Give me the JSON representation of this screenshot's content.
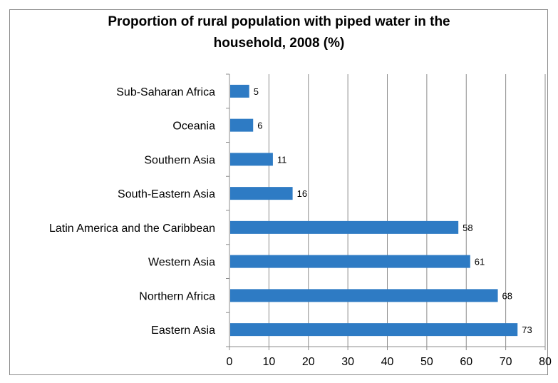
{
  "chart_data": {
    "type": "bar",
    "orientation": "horizontal",
    "title_lines": [
      "Proportion of rural population with piped water in the",
      "household, 2008 (%)"
    ],
    "categories": [
      "Sub-Saharan Africa",
      "Oceania",
      "Southern Asia",
      "South-Eastern Asia",
      "Latin America and the Caribbean",
      "Western Asia",
      "Northern Africa",
      "Eastern Asia"
    ],
    "values": [
      5,
      6,
      11,
      16,
      58,
      61,
      68,
      73
    ],
    "xlim": [
      0,
      80
    ],
    "xticks": [
      "0",
      "10",
      "20",
      "30",
      "40",
      "50",
      "60",
      "70",
      "80"
    ],
    "grid": "vertical",
    "bar_color": "#2e7bc4",
    "grid_color": "#8c8c8c",
    "data_labels": true,
    "legend": "none"
  }
}
